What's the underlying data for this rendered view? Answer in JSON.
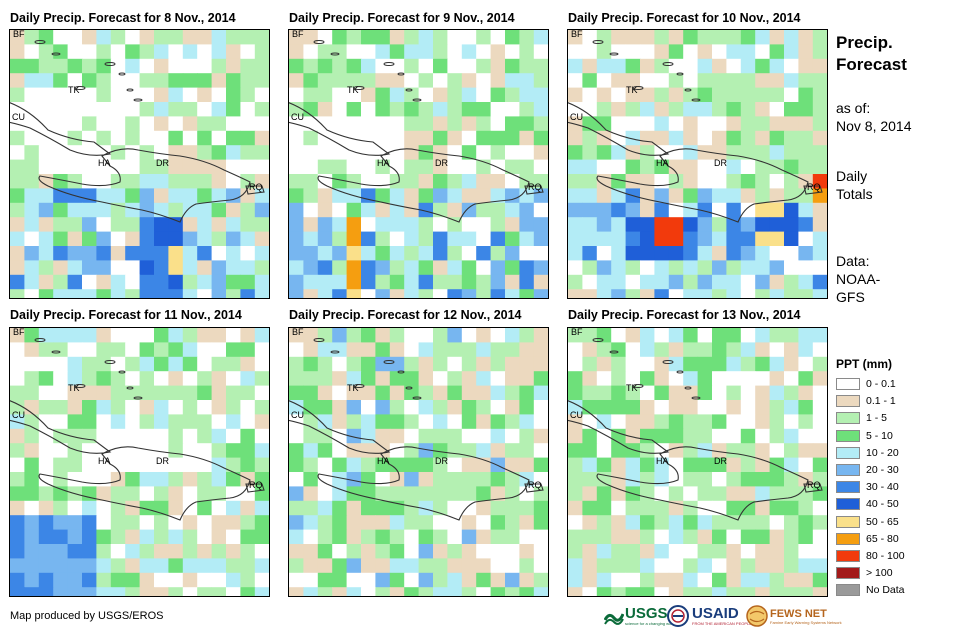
{
  "panels": [
    {
      "title": "Daily Precip. Forecast for 8 Nov., 2014"
    },
    {
      "title": "Daily Precip. Forecast for 9 Nov., 2014"
    },
    {
      "title": "Daily Precip. Forecast for 10 Nov., 2014"
    },
    {
      "title": "Daily Precip. Forecast for 11 Nov., 2014"
    },
    {
      "title": "Daily Precip. Forecast for 12 Nov., 2014"
    },
    {
      "title": "Daily Precip. Forecast for 13 Nov., 2014"
    }
  ],
  "map_labels": [
    "BF",
    "TK",
    "CU",
    "HA",
    "DR",
    "RQ"
  ],
  "sidebar": {
    "title_line1": "Precip.",
    "title_line2": "Forecast",
    "asof_label": "as of:",
    "asof_date": "Nov 8, 2014",
    "totals_line1": "Daily",
    "totals_line2": "Totals",
    "data_label": "Data:",
    "data_line1": "NOAA-",
    "data_line2": "GFS"
  },
  "legend": {
    "title": "PPT (mm)",
    "items": [
      {
        "label": "0 - 0.1",
        "color": "#ffffff"
      },
      {
        "label": "0.1 - 1",
        "color": "#ecd9bf"
      },
      {
        "label": "1 - 5",
        "color": "#b4f0b2"
      },
      {
        "label": "5 - 10",
        "color": "#6ee07a"
      },
      {
        "label": "10 - 20",
        "color": "#b3ecf6"
      },
      {
        "label": "20 - 30",
        "color": "#77b6f0"
      },
      {
        "label": "30 - 40",
        "color": "#3c86e6"
      },
      {
        "label": "40 - 50",
        "color": "#1f5fd8"
      },
      {
        "label": "50 - 65",
        "color": "#fae08a"
      },
      {
        "label": "65 - 80",
        "color": "#f59e10"
      },
      {
        "label": "80 - 100",
        "color": "#f23a0c"
      },
      {
        "label": "> 100",
        "color": "#a31a1a"
      },
      {
        "label": "No Data",
        "color": "#9a9a9a"
      }
    ]
  },
  "footer": {
    "credit": "Map produced by USGS/EROS",
    "usgs": "USGS",
    "usgs_tag": "science for a changing world",
    "usaid": "USAID",
    "usaid_tag": "FROM THE AMERICAN PEOPLE",
    "fews": "FEWS NET",
    "fews_tag": "Famine Early Warning Systems Network"
  }
}
